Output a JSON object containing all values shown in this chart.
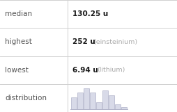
{
  "rows": [
    {
      "label": "median",
      "value": "130.25 u",
      "extra": ""
    },
    {
      "label": "highest",
      "value": "252 u",
      "extra": "(einsteinium)"
    },
    {
      "label": "lowest",
      "value": "6.94 u",
      "extra": "(lithium)"
    },
    {
      "label": "distribution",
      "value": "",
      "extra": ""
    }
  ],
  "hist_bars": [
    5,
    7,
    9,
    7,
    3,
    8,
    6,
    2,
    1
  ],
  "bar_color": "#d8dae8",
  "bar_edge_color": "#b0b2c8",
  "background_color": "#ffffff",
  "label_color": "#555555",
  "value_color": "#1a1a1a",
  "extra_color": "#aaaaaa",
  "grid_color": "#d0d0d0",
  "label_fontsize": 7.5,
  "value_fontsize": 7.5,
  "extra_fontsize": 6.8,
  "col_split": 97
}
